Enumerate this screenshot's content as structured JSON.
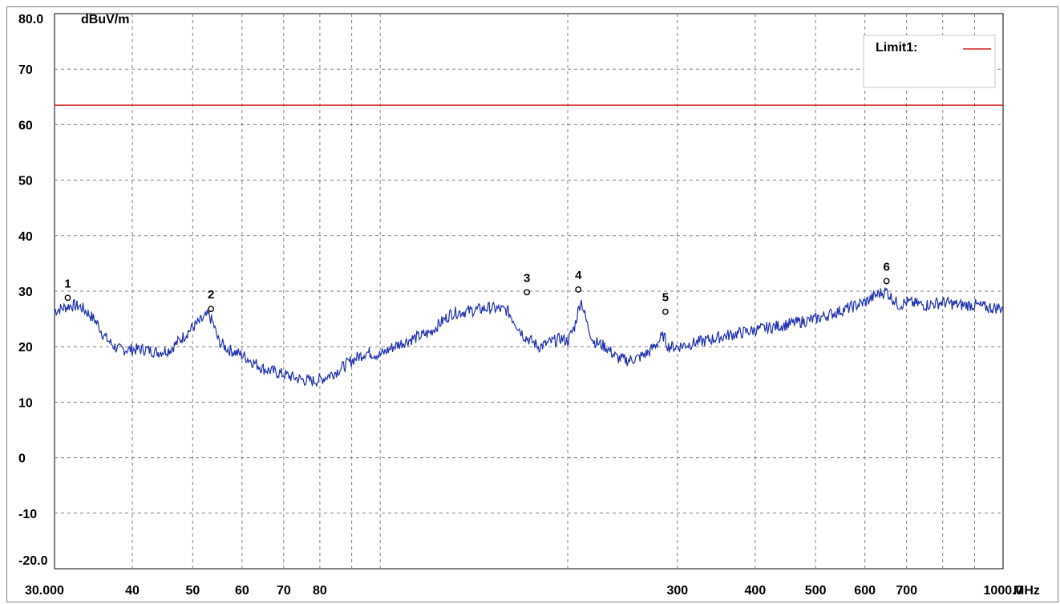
{
  "chart_data": {
    "type": "line",
    "y_unit": "dBuV/m",
    "x_unit": "MHz",
    "x_scale": "log",
    "xlim": [
      30,
      1000
    ],
    "ylim": [
      -20,
      80
    ],
    "grid": true,
    "y_ticks": [
      {
        "value": 80,
        "label": "80.0"
      },
      {
        "value": 70,
        "label": "70"
      },
      {
        "value": 60,
        "label": "60"
      },
      {
        "value": 50,
        "label": "50"
      },
      {
        "value": 40,
        "label": "40"
      },
      {
        "value": 30,
        "label": "30"
      },
      {
        "value": 20,
        "label": "20"
      },
      {
        "value": 10,
        "label": "10"
      },
      {
        "value": 0,
        "label": "0"
      },
      {
        "value": -10,
        "label": "-10"
      },
      {
        "value": -20,
        "label": "-20.0"
      }
    ],
    "x_ticks": [
      {
        "value": 30,
        "label": "30.000"
      },
      {
        "value": 40,
        "label": "40"
      },
      {
        "value": 50,
        "label": "50"
      },
      {
        "value": 60,
        "label": "60"
      },
      {
        "value": 70,
        "label": "70"
      },
      {
        "value": 80,
        "label": "80"
      },
      {
        "value": 300,
        "label": "300"
      },
      {
        "value": 400,
        "label": "400"
      },
      {
        "value": 500,
        "label": "500"
      },
      {
        "value": 600,
        "label": "600"
      },
      {
        "value": 700,
        "label": "700"
      },
      {
        "value": 1000,
        "label": "1000.0"
      }
    ],
    "x_gridlines": [
      30,
      40,
      50,
      60,
      70,
      80,
      90,
      100,
      200,
      300,
      400,
      500,
      600,
      700,
      800,
      900,
      1000
    ],
    "legend": {
      "position": "top-right",
      "entries": [
        {
          "label": "Limit1:",
          "color": "#d42020"
        }
      ]
    },
    "limit_line": {
      "name": "Limit1",
      "value": 63.5,
      "color": "#d42020"
    },
    "series": [
      {
        "color": "#1f2fb0",
        "x": [
          30,
          31,
          32,
          33,
          34,
          35,
          36,
          37,
          38,
          40,
          42,
          44,
          46,
          48,
          50,
          52,
          53,
          54,
          55,
          57,
          60,
          65,
          70,
          75,
          78,
          80,
          85,
          90,
          95,
          100,
          105,
          110,
          120,
          130,
          140,
          150,
          160,
          170,
          180,
          190,
          195,
          200,
          205,
          210,
          215,
          220,
          230,
          240,
          250,
          260,
          270,
          280,
          285,
          290,
          300,
          330,
          360,
          400,
          450,
          500,
          550,
          600,
          630,
          650,
          660,
          680,
          700,
          750,
          800,
          850,
          900,
          950,
          1000
        ],
        "y": [
          26.5,
          27,
          27.5,
          27.2,
          26,
          24.5,
          22,
          20.5,
          19.5,
          19.5,
          19.5,
          19,
          19.5,
          21.5,
          23.5,
          25,
          25.8,
          24,
          21,
          19.5,
          18.5,
          16,
          15,
          14,
          13.8,
          14,
          15.5,
          17.5,
          19,
          18.5,
          20,
          21,
          22.5,
          26,
          26.5,
          27,
          26.5,
          22,
          20,
          21,
          21.5,
          21,
          23.5,
          28.5,
          24,
          21,
          20,
          18,
          17.5,
          18,
          19,
          21,
          22,
          20,
          20,
          21,
          22,
          23,
          24,
          25,
          26.5,
          28,
          29.5,
          30,
          29,
          27.5,
          28,
          27.5,
          28,
          27.5,
          27.5,
          27,
          27
        ]
      }
    ],
    "markers": [
      {
        "label": "1",
        "x": 31.5,
        "y": 27.5
      },
      {
        "label": "2",
        "x": 53.5,
        "y": 25.5
      },
      {
        "label": "3",
        "x": 172,
        "y": 28.5
      },
      {
        "label": "4",
        "x": 208,
        "y": 29.0
      },
      {
        "label": "5",
        "x": 287,
        "y": 25.0
      },
      {
        "label": "6",
        "x": 650,
        "y": 30.5
      }
    ]
  }
}
